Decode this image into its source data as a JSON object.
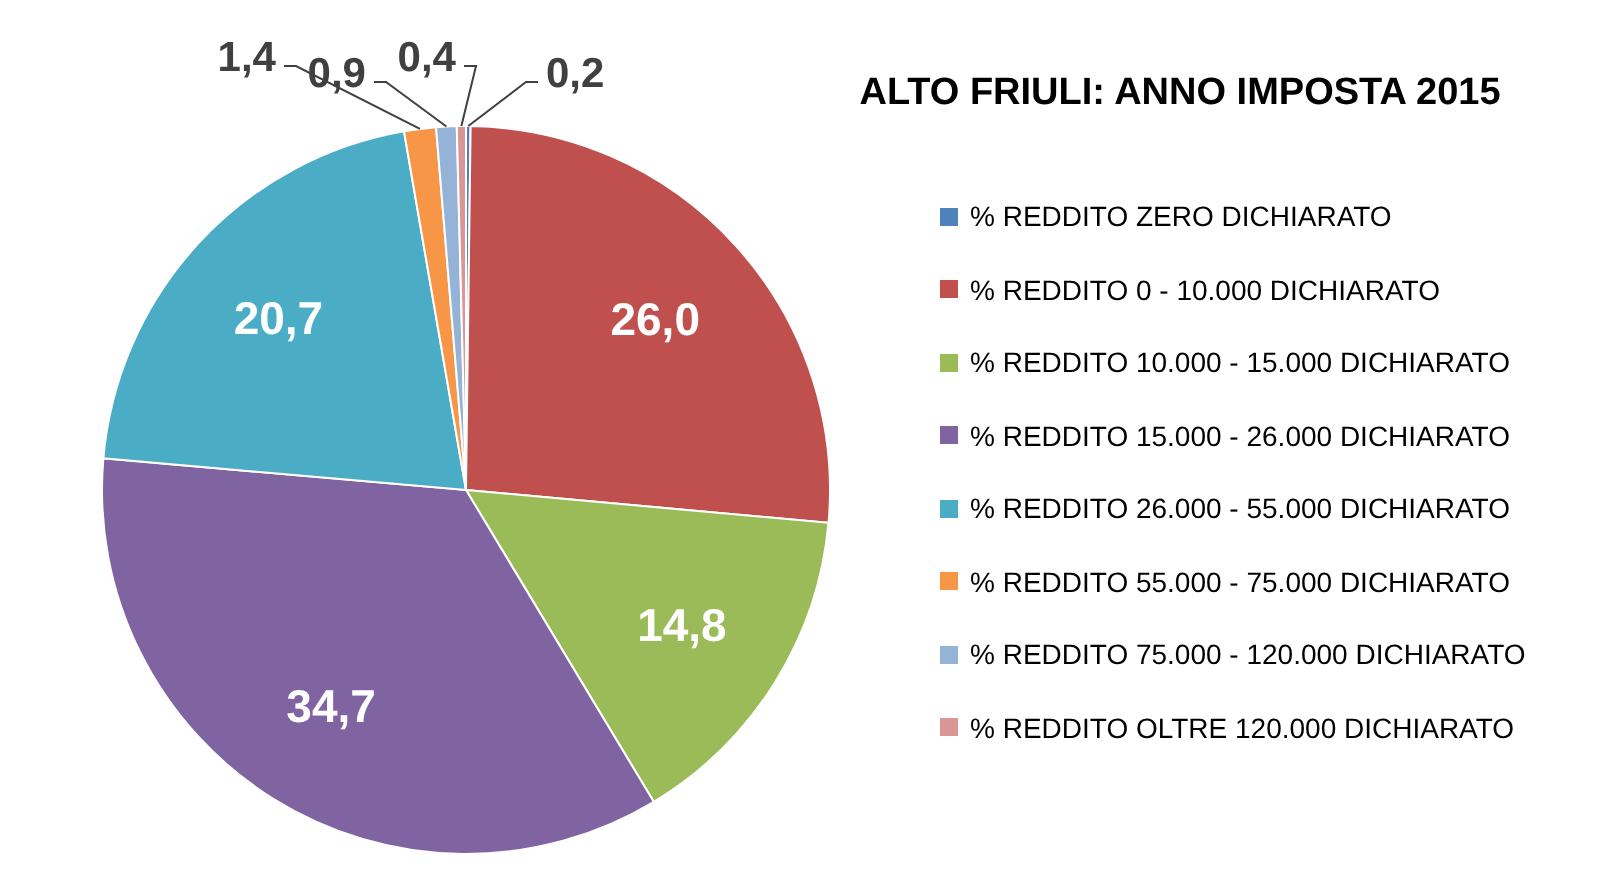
{
  "chart_data": {
    "type": "pie",
    "title": "ALTO FRIULI: ANNO IMPOSTA 2015",
    "categories": [
      "% REDDITO ZERO DICHIARATO",
      "% REDDITO 0 - 10.000 DICHIARATO",
      "% REDDITO 10.000 - 15.000 DICHIARATO",
      "% REDDITO 15.000 - 26.000 DICHIARATO",
      "% REDDITO 26.000 - 55.000 DICHIARATO",
      "% REDDITO 55.000 - 75.000 DICHIARATO",
      "% REDDITO 75.000 - 120.000 DICHIARATO",
      "% REDDITO OLTRE 120.000 DICHIARATO"
    ],
    "values": [
      0.2,
      26.0,
      14.8,
      34.7,
      20.7,
      1.4,
      0.9,
      0.4
    ],
    "value_labels": [
      "0,2",
      "26,0",
      "14,8",
      "34,7",
      "20,7",
      "1,4",
      "0,9",
      "0,4"
    ],
    "colors": [
      "#4f81bd",
      "#c0504d",
      "#9bbb59",
      "#8064a2",
      "#4bacc6",
      "#f79646",
      "#95b3d7",
      "#d99694"
    ],
    "legend": "right"
  }
}
